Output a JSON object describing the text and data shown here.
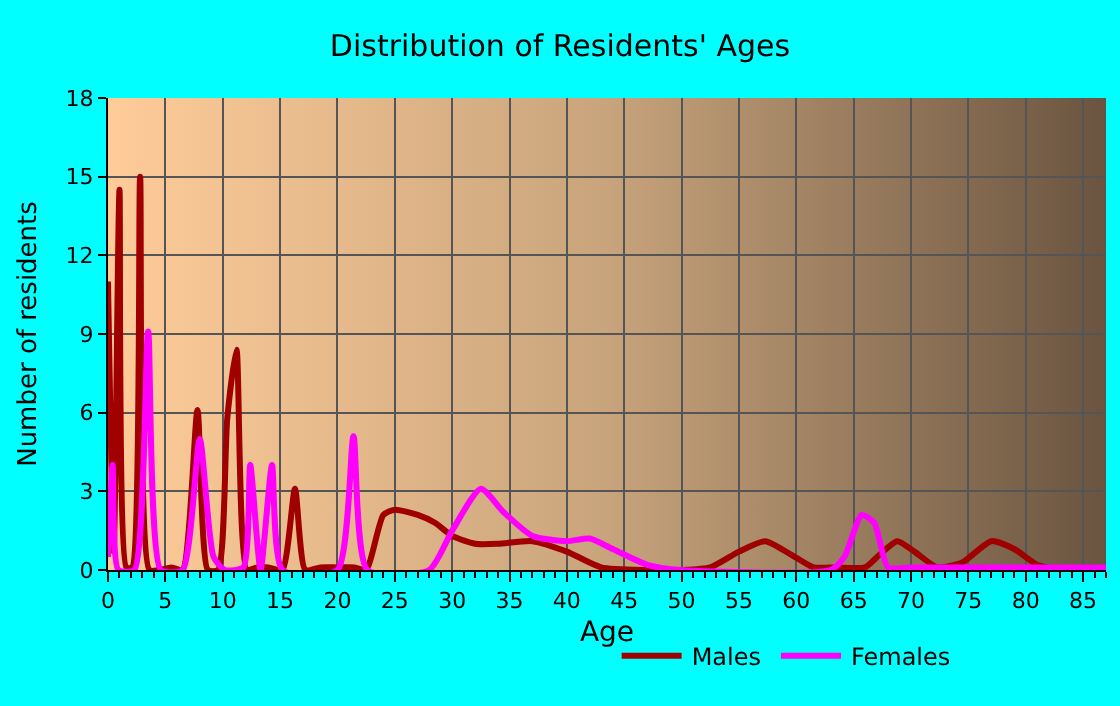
{
  "chart_data": {
    "type": "line",
    "title": "Distribution of Residents' Ages",
    "xlabel": "Age",
    "ylabel": "Number of residents",
    "xlim": [
      0,
      87
    ],
    "xticks": [
      0,
      5,
      10,
      15,
      20,
      25,
      30,
      35,
      40,
      45,
      50,
      55,
      60,
      65,
      70,
      75,
      80,
      85
    ],
    "ylim": [
      0,
      18
    ],
    "yticks": [
      0,
      3,
      6,
      9,
      12,
      15,
      18
    ],
    "grid": true,
    "legend": "bottom",
    "marker": "none",
    "line_style": "solid",
    "series": [
      {
        "name": "Males",
        "color": "#a00000",
        "x": [
          0,
          0.5,
          1,
          1.6,
          2.1,
          2.8,
          3.6,
          4.5,
          5.5,
          6.5,
          7.8,
          8.7,
          9.6,
          10.4,
          11.2,
          12.1,
          13,
          14,
          15.2,
          16.3,
          17.2,
          18.5,
          20,
          21.5,
          22.5,
          24,
          25,
          27,
          28.5,
          30,
          32,
          34,
          37,
          40,
          43,
          47,
          50,
          52.5,
          55,
          57.3,
          59.5,
          61.5,
          63.5,
          66,
          67.3,
          68.8,
          70.3,
          72.3,
          74.5,
          77,
          79,
          81,
          83,
          87
        ],
        "values": [
          11,
          0.7,
          14.5,
          0.1,
          0.1,
          15,
          0,
          0,
          0.1,
          0,
          6.1,
          0,
          0,
          5.8,
          8.4,
          0,
          0.1,
          0.1,
          0,
          3.1,
          0,
          0.1,
          0.1,
          0.1,
          0,
          2.1,
          2.3,
          2.1,
          1.8,
          1.3,
          1,
          1,
          1.1,
          0.7,
          0.1,
          0,
          0,
          0.1,
          0.7,
          1.1,
          0.6,
          0.1,
          0.1,
          0.1,
          0.6,
          1.1,
          0.7,
          0.1,
          0.3,
          1.1,
          0.8,
          0.2,
          0,
          0
        ]
      },
      {
        "name": "Females",
        "color": "#ff00ff",
        "x": [
          0,
          0.4,
          0.9,
          2.3,
          3.5,
          4.6,
          6.5,
          8,
          9.2,
          10.2,
          11.8,
          12.4,
          13.3,
          14.3,
          15.2,
          20,
          21.4,
          22.6,
          28,
          30,
          32.5,
          34.5,
          37,
          40,
          42,
          44,
          47,
          50,
          63,
          64.2,
          65.7,
          66.8,
          68,
          70,
          87
        ],
        "values": [
          0.5,
          4,
          0,
          0,
          9.1,
          0,
          0,
          5,
          0.5,
          0,
          0.1,
          4,
          0,
          4,
          0,
          0,
          5.1,
          0,
          0,
          1.5,
          3.1,
          2.2,
          1.3,
          1.1,
          1.2,
          0.8,
          0.2,
          0,
          0,
          0.5,
          2.1,
          1.8,
          0.1,
          0.1,
          0.1
        ]
      }
    ]
  }
}
